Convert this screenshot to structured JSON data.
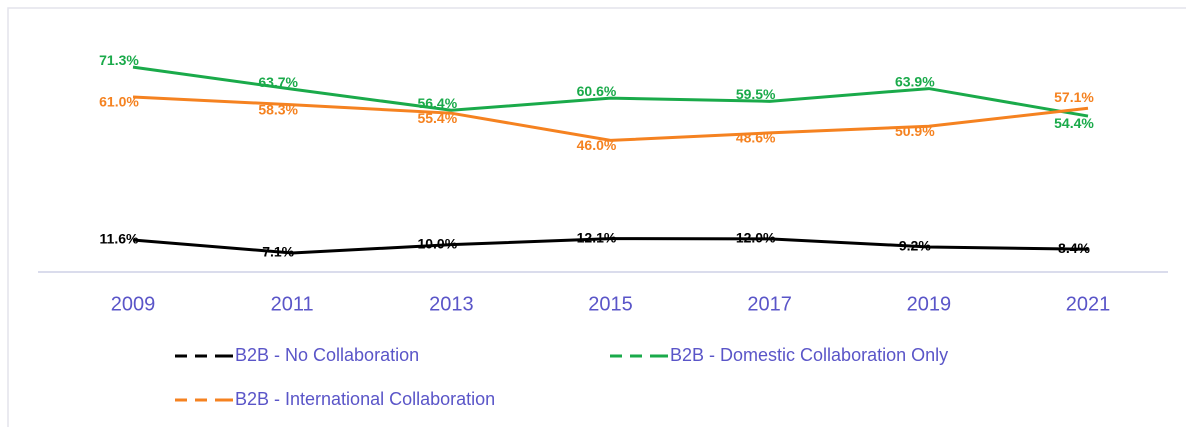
{
  "chart_data": {
    "type": "line",
    "categories": [
      "2009",
      "2011",
      "2013",
      "2015",
      "2017",
      "2019",
      "2021"
    ],
    "ylim": [
      0,
      90
    ],
    "series": [
      {
        "name": "B2B - No Collaboration",
        "color": "#000000",
        "values": [
          11.6,
          7.1,
          10.0,
          12.1,
          12.0,
          9.2,
          8.4
        ],
        "value_labels": [
          "11.6%",
          "7.1%",
          "10.0%",
          "12.1%",
          "12.0%",
          "9.2%",
          "8.4%"
        ]
      },
      {
        "name": "B2B - Domestic Collaboration Only",
        "color": "#1aaa4a",
        "values": [
          71.3,
          63.7,
          56.4,
          60.6,
          59.5,
          63.9,
          54.4
        ],
        "value_labels": [
          "71.3%",
          "63.7%",
          "56.4%",
          "60.6%",
          "59.5%",
          "63.9%",
          "54.4%"
        ]
      },
      {
        "name": "B2B - International Collaboration",
        "color": "#f58220",
        "values": [
          61.0,
          58.3,
          55.4,
          46.0,
          48.6,
          50.9,
          57.1
        ],
        "value_labels": [
          "61.0%",
          "58.3%",
          "55.4%",
          "46.0%",
          "48.6%",
          "50.9%",
          "57.1%"
        ]
      }
    ]
  }
}
